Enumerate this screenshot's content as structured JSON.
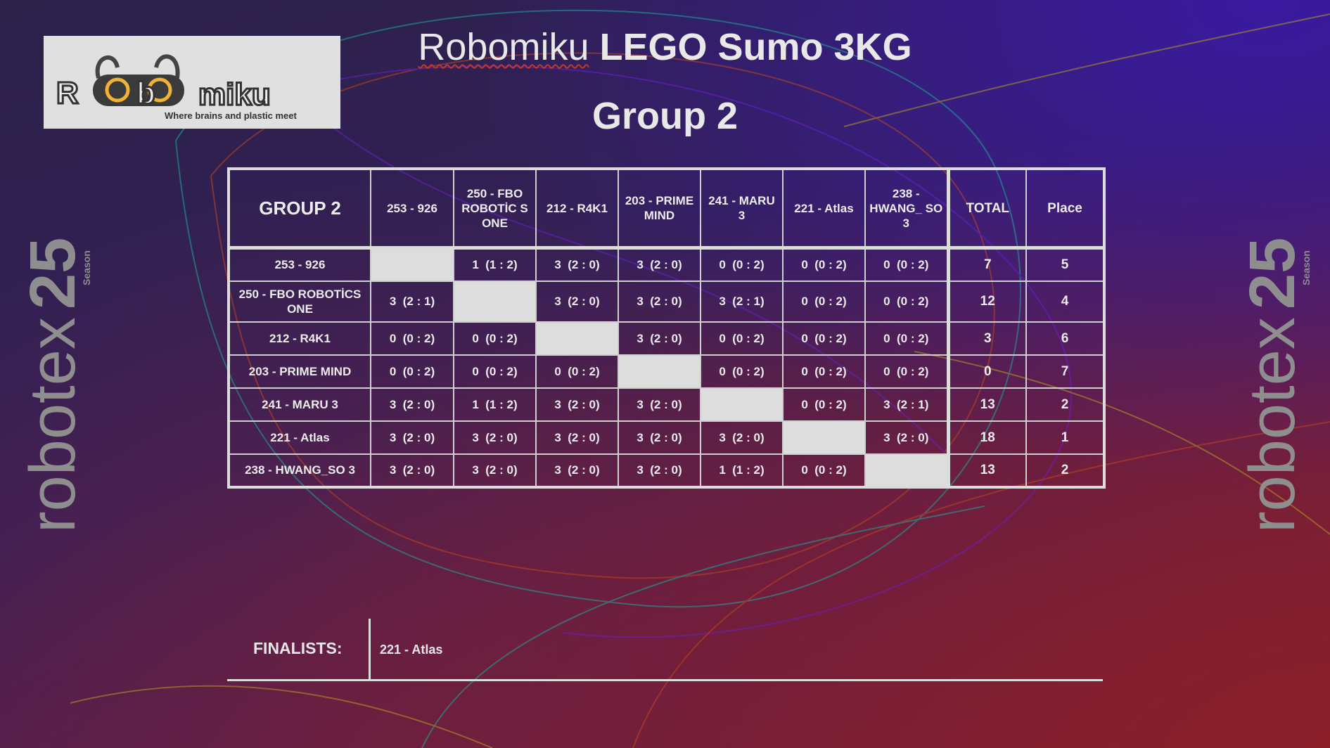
{
  "header": {
    "title_brand": "Robomiku",
    "title_rest": "LEGO Sumo 3KG",
    "subtitle": "Group 2"
  },
  "logo": {
    "wordmark": "Robomiku",
    "tagline": "Where brains and plastic meet"
  },
  "side_logo": {
    "wordmark": "robotex",
    "number": "25",
    "season": "Season"
  },
  "table": {
    "corner": "GROUP 2",
    "columns": [
      "253 - 926",
      "250 - FBO ROBOTİC S ONE",
      "212 - R4K1",
      "203 - PRIME MIND",
      "241 - MARU 3",
      "221 - Atlas",
      "238 - HWANG_ SO 3"
    ],
    "total_label": "TOTAL",
    "place_label": "Place",
    "rows": [
      {
        "team": "253 - 926",
        "results": [
          "",
          "1  (1 : 2)",
          "3  (2 : 0)",
          "3  (2 : 0)",
          "0  (0 : 2)",
          "0  (0 : 2)",
          "0  (0 : 2)"
        ],
        "total": "7",
        "place": "5"
      },
      {
        "team": "250 - FBO ROBOTİCS ONE",
        "results": [
          "3  (2 : 1)",
          "",
          "3  (2 : 0)",
          "3  (2 : 0)",
          "3  (2 : 1)",
          "0  (0 : 2)",
          "0  (0 : 2)"
        ],
        "total": "12",
        "place": "4"
      },
      {
        "team": "212 - R4K1",
        "results": [
          "0  (0 : 2)",
          "0  (0 : 2)",
          "",
          "3  (2 : 0)",
          "0  (0 : 2)",
          "0  (0 : 2)",
          "0  (0 : 2)"
        ],
        "total": "3",
        "place": "6"
      },
      {
        "team": "203 - PRIME MIND",
        "results": [
          "0  (0 : 2)",
          "0  (0 : 2)",
          "0  (0 : 2)",
          "",
          "0  (0 : 2)",
          "0  (0 : 2)",
          "0  (0 : 2)"
        ],
        "total": "0",
        "place": "7"
      },
      {
        "team": "241 - MARU 3",
        "results": [
          "3  (2 : 0)",
          "1  (1 : 2)",
          "3  (2 : 0)",
          "3  (2 : 0)",
          "",
          "0  (0 : 2)",
          "3  (2 : 1)"
        ],
        "total": "13",
        "place": "2"
      },
      {
        "team": "221 - Atlas",
        "results": [
          "3  (2 : 0)",
          "3  (2 : 0)",
          "3  (2 : 0)",
          "3  (2 : 0)",
          "3  (2 : 0)",
          "",
          "3  (2 : 0)"
        ],
        "total": "18",
        "place": "1"
      },
      {
        "team": "238 - HWANG_SO 3",
        "results": [
          "3  (2 : 0)",
          "3  (2 : 0)",
          "3  (2 : 0)",
          "3  (2 : 0)",
          "1  (1 : 2)",
          "0  (0 : 2)",
          ""
        ],
        "total": "13",
        "place": "2"
      }
    ]
  },
  "finalists": {
    "label": "FINALISTS:",
    "value": "221 - Atlas"
  },
  "colors": {
    "text": "#e6e6e6",
    "grid": "#dcdcdc",
    "blank_cell": "#dddddd",
    "logo_accent": "#f2b233"
  }
}
